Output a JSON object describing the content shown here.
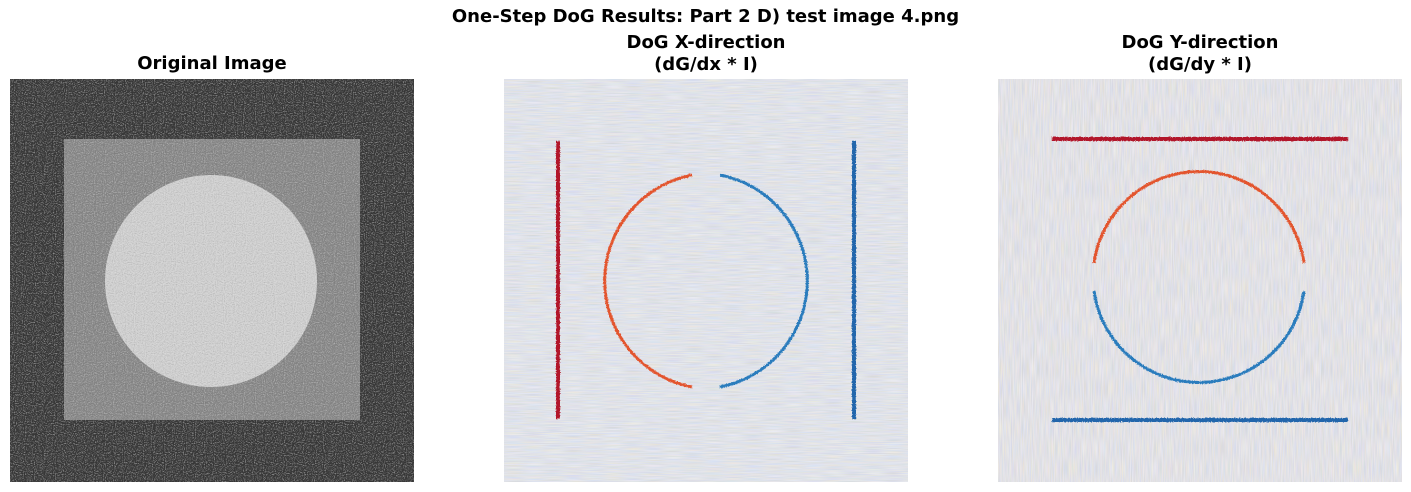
{
  "figure": {
    "suptitle": "One-Step DoG Results: Part 2 D) test image 4.png"
  },
  "panels": [
    {
      "title_lines": [
        "Original Image"
      ],
      "colormap": "gray",
      "content": "noisy dark background with a lighter square and a bright circle"
    },
    {
      "title_lines": [
        "DoG X-direction",
        "(dG/dx * I)"
      ],
      "colormap": "RdBu",
      "content": "red/blue response on vertical edges and left/right halves of circle"
    },
    {
      "title_lines": [
        "DoG Y-direction",
        "(dG/dy * I)"
      ],
      "colormap": "RdBu",
      "content": "red/blue response on horizontal edges and top/bottom halves of circle"
    }
  ],
  "colors": {
    "positive_edge": "#b2182b",
    "negative_edge": "#2166ac",
    "background_dark": "#3a3a3a",
    "square_gray": "#8a8a8a",
    "circle_light": "#cfcfcf"
  }
}
